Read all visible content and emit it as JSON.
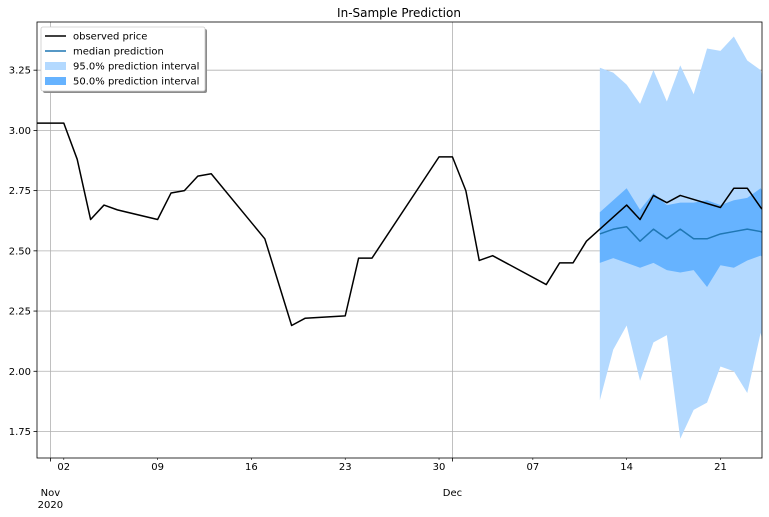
{
  "chart_data": {
    "type": "line",
    "title": "In-Sample Prediction",
    "xlabel": "",
    "ylabel": "",
    "xlim": [
      "2020-10-31",
      "2020-12-24"
    ],
    "ylim": [
      1.64,
      3.45
    ],
    "grid": true,
    "legend_placement": "top-left",
    "y_ticks": [
      "1.75",
      "2.00",
      "2.25",
      "2.50",
      "2.75",
      "3.00",
      "3.25"
    ],
    "x_minor_ticks": [
      {
        "date": "2020-11-02",
        "label": "02"
      },
      {
        "date": "2020-11-09",
        "label": "09"
      },
      {
        "date": "2020-11-16",
        "label": "16"
      },
      {
        "date": "2020-11-23",
        "label": "23"
      },
      {
        "date": "2020-11-30",
        "label": "30"
      },
      {
        "date": "2020-12-07",
        "label": "07"
      },
      {
        "date": "2020-12-14",
        "label": "14"
      },
      {
        "date": "2020-12-21",
        "label": "21"
      }
    ],
    "x_major_ticks": [
      {
        "date": "2020-11-01",
        "label": "Nov\n2020"
      },
      {
        "date": "2020-12-01",
        "label": "Dec"
      }
    ],
    "series": [
      {
        "name": "observed price",
        "kind": "line",
        "color": "#000000",
        "x": [
          "2020-10-31",
          "2020-11-02",
          "2020-11-03",
          "2020-11-04",
          "2020-11-05",
          "2020-11-06",
          "2020-11-09",
          "2020-11-10",
          "2020-11-11",
          "2020-11-12",
          "2020-11-13",
          "2020-11-17",
          "2020-11-19",
          "2020-11-20",
          "2020-11-23",
          "2020-11-24",
          "2020-11-25",
          "2020-11-30",
          "2020-12-01",
          "2020-12-02",
          "2020-12-03",
          "2020-12-04",
          "2020-12-08",
          "2020-12-09",
          "2020-12-10",
          "2020-12-11",
          "2020-12-14",
          "2020-12-15",
          "2020-12-16",
          "2020-12-17",
          "2020-12-18",
          "2020-12-21",
          "2020-12-22",
          "2020-12-23",
          "2020-12-24",
          "2020-12-25"
        ],
        "y": [
          3.03,
          3.03,
          2.88,
          2.63,
          2.69,
          2.67,
          2.63,
          2.74,
          2.75,
          2.81,
          2.82,
          2.55,
          2.19,
          2.22,
          2.23,
          2.47,
          2.47,
          2.89,
          2.89,
          2.75,
          2.46,
          2.48,
          2.36,
          2.45,
          2.45,
          2.54,
          2.69,
          2.63,
          2.73,
          2.7,
          2.73,
          2.68,
          2.76,
          2.76,
          2.68,
          2.62
        ]
      },
      {
        "name": "median prediction",
        "kind": "line",
        "color": "#1f77b4",
        "x": [
          "2020-12-12",
          "2020-12-13",
          "2020-12-14",
          "2020-12-15",
          "2020-12-16",
          "2020-12-17",
          "2020-12-18",
          "2020-12-19",
          "2020-12-20",
          "2020-12-21",
          "2020-12-22",
          "2020-12-23",
          "2020-12-24",
          "2020-12-25"
        ],
        "y": [
          2.57,
          2.59,
          2.6,
          2.54,
          2.59,
          2.55,
          2.59,
          2.55,
          2.55,
          2.57,
          2.58,
          2.59,
          2.58,
          2.55
        ]
      },
      {
        "name": "95.0% prediction interval",
        "kind": "band",
        "color": "#b3d9ff",
        "x": [
          "2020-12-12",
          "2020-12-13",
          "2020-12-14",
          "2020-12-15",
          "2020-12-16",
          "2020-12-17",
          "2020-12-18",
          "2020-12-19",
          "2020-12-20",
          "2020-12-21",
          "2020-12-22",
          "2020-12-23",
          "2020-12-24",
          "2020-12-25"
        ],
        "upper": [
          3.26,
          3.24,
          3.19,
          3.11,
          3.25,
          3.12,
          3.27,
          3.15,
          3.34,
          3.33,
          3.39,
          3.29,
          3.25,
          3.01
        ],
        "lower": [
          1.88,
          2.09,
          2.19,
          1.96,
          2.12,
          2.15,
          1.72,
          1.84,
          1.87,
          2.02,
          2.0,
          1.91,
          2.16,
          1.88
        ]
      },
      {
        "name": "50.0% prediction interval",
        "kind": "band",
        "color": "#66b3ff",
        "x": [
          "2020-12-12",
          "2020-12-13",
          "2020-12-14",
          "2020-12-15",
          "2020-12-16",
          "2020-12-17",
          "2020-12-18",
          "2020-12-19",
          "2020-12-20",
          "2020-12-21",
          "2020-12-22",
          "2020-12-23",
          "2020-12-24",
          "2020-12-25"
        ],
        "upper": [
          2.66,
          2.71,
          2.76,
          2.67,
          2.74,
          2.69,
          2.7,
          2.7,
          2.71,
          2.69,
          2.71,
          2.72,
          2.76,
          2.66
        ],
        "lower": [
          2.45,
          2.47,
          2.45,
          2.43,
          2.45,
          2.42,
          2.41,
          2.42,
          2.35,
          2.44,
          2.43,
          2.46,
          2.48,
          2.44
        ]
      }
    ],
    "legend": [
      {
        "label": "observed price",
        "kind": "line",
        "color": "#000000"
      },
      {
        "label": "median prediction",
        "kind": "line",
        "color": "#1f77b4"
      },
      {
        "label": "95.0% prediction interval",
        "kind": "patch",
        "color": "#b3d9ff"
      },
      {
        "label": "50.0% prediction interval",
        "kind": "patch",
        "color": "#66b3ff"
      }
    ]
  }
}
